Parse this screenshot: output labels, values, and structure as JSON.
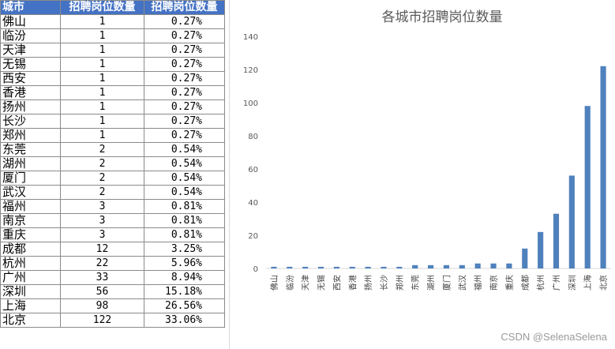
{
  "table": {
    "headers": [
      "城市",
      "招聘岗位数量",
      "招聘岗位数量"
    ],
    "rows": [
      [
        "佛山",
        "1",
        "0.27%"
      ],
      [
        "临汾",
        "1",
        "0.27%"
      ],
      [
        "天津",
        "1",
        "0.27%"
      ],
      [
        "无锡",
        "1",
        "0.27%"
      ],
      [
        "西安",
        "1",
        "0.27%"
      ],
      [
        "香港",
        "1",
        "0.27%"
      ],
      [
        "扬州",
        "1",
        "0.27%"
      ],
      [
        "长沙",
        "1",
        "0.27%"
      ],
      [
        "郑州",
        "1",
        "0.27%"
      ],
      [
        "东莞",
        "2",
        "0.54%"
      ],
      [
        "湖州",
        "2",
        "0.54%"
      ],
      [
        "厦门",
        "2",
        "0.54%"
      ],
      [
        "武汉",
        "2",
        "0.54%"
      ],
      [
        "福州",
        "3",
        "0.81%"
      ],
      [
        "南京",
        "3",
        "0.81%"
      ],
      [
        "重庆",
        "3",
        "0.81%"
      ],
      [
        "成都",
        "12",
        "3.25%"
      ],
      [
        "杭州",
        "22",
        "5.96%"
      ],
      [
        "广州",
        "33",
        "8.94%"
      ],
      [
        "深圳",
        "56",
        "15.18%"
      ],
      [
        "上海",
        "98",
        "26.56%"
      ],
      [
        "北京",
        "122",
        "33.06%"
      ]
    ],
    "header_color": "#4472c4"
  },
  "chart_data": {
    "type": "bar",
    "title": "各城市招聘岗位数量",
    "categories": [
      "佛山",
      "临汾",
      "天津",
      "无锡",
      "西安",
      "香港",
      "扬州",
      "长沙",
      "郑州",
      "东莞",
      "湖州",
      "厦门",
      "武汉",
      "福州",
      "南京",
      "重庆",
      "成都",
      "杭州",
      "广州",
      "深圳",
      "上海",
      "北京"
    ],
    "values": [
      1,
      1,
      1,
      1,
      1,
      1,
      1,
      1,
      1,
      2,
      2,
      2,
      2,
      3,
      3,
      3,
      12,
      22,
      33,
      56,
      98,
      122
    ],
    "ylim": [
      0,
      140
    ],
    "yticks": [
      0,
      20,
      40,
      60,
      80,
      100,
      120,
      140
    ],
    "grid": false,
    "bar_color": "#4f81bd"
  },
  "watermark": "CSDN @SelenaSelena"
}
